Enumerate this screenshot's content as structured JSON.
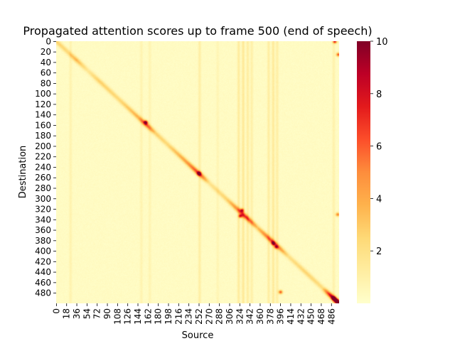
{
  "chart_data": {
    "type": "heatmap",
    "title": "Propagated attention scores up to frame 500 (end of speech)",
    "xlabel": "Source",
    "ylabel": "Destination",
    "n_frames": 500,
    "x_tick_labels": [
      "0",
      "18",
      "36",
      "54",
      "72",
      "90",
      "108",
      "126",
      "144",
      "162",
      "180",
      "198",
      "216",
      "234",
      "252",
      "270",
      "288",
      "306",
      "324",
      "342",
      "360",
      "378",
      "396",
      "414",
      "432",
      "450",
      "468",
      "486"
    ],
    "y_tick_labels": [
      "0",
      "20",
      "40",
      "60",
      "80",
      "100",
      "120",
      "140",
      "160",
      "180",
      "200",
      "220",
      "240",
      "260",
      "280",
      "300",
      "320",
      "340",
      "360",
      "380",
      "400",
      "420",
      "440",
      "460",
      "480"
    ],
    "colorbar": {
      "range": [
        0,
        10
      ],
      "tick_labels": [
        "2",
        "4",
        "6",
        "8",
        "10"
      ],
      "colormap": "YlOrRd",
      "colors": [
        "#ffffcc",
        "#ffeda0",
        "#fed976",
        "#feb24c",
        "#fd8d3c",
        "#fc4e2a",
        "#e31a1c",
        "#bd0026",
        "#800026"
      ]
    },
    "background_value": 0.25,
    "diagonal_profile": [
      [
        0,
        2.5
      ],
      [
        20,
        2.2
      ],
      [
        35,
        3.5
      ],
      [
        55,
        1.4
      ],
      [
        75,
        2.6
      ],
      [
        110,
        2.2
      ],
      [
        125,
        2.8
      ],
      [
        145,
        3.6
      ],
      [
        158,
        6.5
      ],
      [
        175,
        2.6
      ],
      [
        195,
        2.2
      ],
      [
        230,
        4.2
      ],
      [
        252,
        6.8
      ],
      [
        270,
        1.6
      ],
      [
        300,
        2.4
      ],
      [
        325,
        5.5
      ],
      [
        335,
        6.8
      ],
      [
        355,
        3.0
      ],
      [
        380,
        6.2
      ],
      [
        392,
        5.0
      ],
      [
        410,
        1.8
      ],
      [
        440,
        2.4
      ],
      [
        470,
        2.0
      ],
      [
        485,
        8.5
      ],
      [
        499,
        10
      ]
    ],
    "vertical_streaks": [
      {
        "source": 25,
        "value": 0.6
      },
      {
        "source": 150,
        "value": 0.55
      },
      {
        "source": 165,
        "value": 0.5
      },
      {
        "source": 253,
        "value": 0.9
      },
      {
        "source": 285,
        "value": 0.45
      },
      {
        "source": 322,
        "value": 1.1
      },
      {
        "source": 330,
        "value": 1.3
      },
      {
        "source": 338,
        "value": 1.0
      },
      {
        "source": 345,
        "value": 0.8
      },
      {
        "source": 375,
        "value": 1.0
      },
      {
        "source": 383,
        "value": 1.2
      },
      {
        "source": 390,
        "value": 0.9
      },
      {
        "source": 490,
        "value": 0.7
      }
    ],
    "hotspots": [
      {
        "source": 325,
        "destination": 333,
        "value": 7.0
      },
      {
        "source": 328,
        "destination": 322,
        "value": 6.0
      },
      {
        "source": 383,
        "destination": 385,
        "value": 6.5
      },
      {
        "source": 388,
        "destination": 392,
        "value": 5.5
      },
      {
        "source": 252,
        "destination": 252,
        "value": 8.0
      },
      {
        "source": 158,
        "destination": 154,
        "value": 7.0
      },
      {
        "source": 490,
        "destination": 490,
        "value": 9.0
      },
      {
        "source": 495,
        "destination": 495,
        "value": 10.0
      },
      {
        "source": 492,
        "destination": 0,
        "value": 7.5
      },
      {
        "source": 498,
        "destination": 25,
        "value": 6.0
      },
      {
        "source": 497,
        "destination": 330,
        "value": 5.0
      },
      {
        "source": 396,
        "destination": 478,
        "value": 6.0
      }
    ]
  }
}
